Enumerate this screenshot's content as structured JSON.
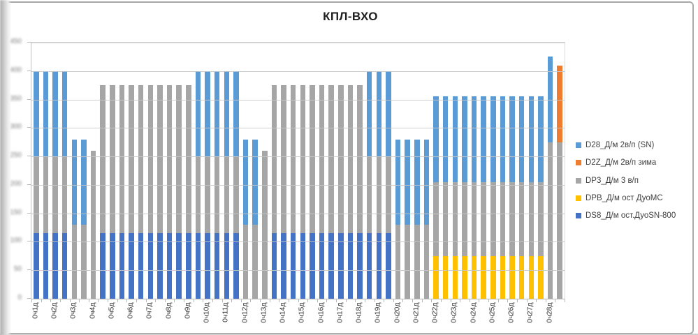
{
  "title": "КПЛ-ВХО",
  "accent_colors": {
    "d28_blue": "#5B9BD5",
    "d2z_orange": "#ED7D31",
    "dp3_gray": "#A6A6A6",
    "dpb_yellow": "#FFC000",
    "ds8_dark_blue": "#4472C4"
  },
  "legend": {
    "position": "right",
    "items": [
      {
        "key": "D28",
        "label": "D28_Д/м 2в/п (SN)",
        "color": "#5B9BD5"
      },
      {
        "key": "D2Z",
        "label": "D2Z_Д/м 2в/п зима",
        "color": "#ED7D31"
      },
      {
        "key": "DP3",
        "label": "DP3_Д/м 3 в/п",
        "color": "#A6A6A6"
      },
      {
        "key": "DPB",
        "label": "DPB_Д/м ост ДуоМС",
        "color": "#FFC000"
      },
      {
        "key": "DS8",
        "label": "DS8_Д/м ост.ДуоSN-800",
        "color": "#4472C4"
      }
    ]
  },
  "y_axis": {
    "labels_legible": false,
    "note": "tick labels are blurred/illegible in the screenshot; values estimated from gridline count",
    "ticks": [
      "0",
      "50",
      "100",
      "150",
      "200",
      "250",
      "300",
      "350",
      "400",
      "450"
    ]
  },
  "x_axis": {
    "labels": [
      "0ч1д",
      "0ч2д",
      "0ч3д",
      "0ч4д",
      "0ч5д",
      "0ч6д",
      "0ч7д",
      "0ч8д",
      "0ч9д",
      "0ч10д",
      "0ч11д",
      "0ч12д",
      "0ч13д",
      "0ч14д",
      "0ч15д",
      "0ч16д",
      "0ч17д",
      "0ч18д",
      "0ч19д",
      "0ч20д",
      "0ч21д",
      "0ч22д",
      "0ч23д",
      "0ч24д",
      "0ч25д",
      "0ч26д",
      "0ч27д",
      "0ч28д"
    ],
    "label_every_n_bars": 2
  },
  "chart_data": {
    "type": "bar",
    "stacked": true,
    "title": "КПЛ-ВХО",
    "n_bars": 56,
    "categories_labeled": [
      "0ч1д",
      "0ч2д",
      "0ч3д",
      "0ч4д",
      "0ч5д",
      "0ч6д",
      "0ч7д",
      "0ч8д",
      "0ч9д",
      "0ч10д",
      "0ч11д",
      "0ч12д",
      "0ч13д",
      "0ч14д",
      "0ч15д",
      "0ч16д",
      "0ч17д",
      "0ч18д",
      "0ч19д",
      "0ч20д",
      "0ч21д",
      "0ч22д",
      "0ч23д",
      "0ч24д",
      "0ч25д",
      "0ч26д",
      "0ч27д",
      "0ч28д"
    ],
    "label_interval": 2,
    "ylim": [
      0,
      450
    ],
    "gridline_step": 50,
    "grid": true,
    "legend_position": "right",
    "values_estimated": true,
    "stack_order": [
      "DS8",
      "DPB",
      "DP3",
      "D28",
      "D2Z"
    ],
    "series": [
      {
        "key": "D28",
        "name": "D28_Д/м 2в/п (SN)",
        "color": "#5B9BD5",
        "values": [
          150,
          150,
          150,
          150,
          150,
          150,
          0,
          0,
          0,
          0,
          0,
          0,
          0,
          0,
          0,
          0,
          0,
          150,
          150,
          150,
          150,
          150,
          150,
          150,
          0,
          0,
          0,
          0,
          0,
          0,
          0,
          0,
          0,
          0,
          0,
          150,
          150,
          150,
          150,
          150,
          150,
          150,
          150,
          150,
          150,
          150,
          150,
          150,
          150,
          150,
          150,
          150,
          150,
          150,
          150,
          0
        ]
      },
      {
        "key": "D2Z",
        "name": "D2Z_Д/м 2в/п зима",
        "color": "#ED7D31",
        "values": [
          0,
          0,
          0,
          0,
          0,
          0,
          0,
          0,
          0,
          0,
          0,
          0,
          0,
          0,
          0,
          0,
          0,
          0,
          0,
          0,
          0,
          0,
          0,
          0,
          0,
          0,
          0,
          0,
          0,
          0,
          0,
          0,
          0,
          0,
          0,
          0,
          0,
          0,
          0,
          0,
          0,
          0,
          0,
          0,
          0,
          0,
          0,
          0,
          0,
          0,
          0,
          0,
          0,
          0,
          0,
          135
        ]
      },
      {
        "key": "DP3",
        "name": "DP3_Д/м 3 в/п",
        "color": "#A6A6A6",
        "values": [
          135,
          135,
          135,
          135,
          130,
          130,
          260,
          260,
          260,
          260,
          260,
          260,
          260,
          260,
          260,
          260,
          260,
          135,
          135,
          135,
          135,
          135,
          130,
          130,
          260,
          260,
          260,
          260,
          260,
          260,
          260,
          260,
          260,
          260,
          260,
          135,
          135,
          135,
          130,
          130,
          130,
          130,
          130,
          130,
          130,
          130,
          130,
          130,
          130,
          130,
          130,
          130,
          130,
          130,
          275,
          275
        ]
      },
      {
        "key": "DPB",
        "name": "DPB_Д/м ост ДуоМС",
        "color": "#FFC000",
        "values": [
          0,
          0,
          0,
          0,
          0,
          0,
          0,
          0,
          0,
          0,
          0,
          0,
          0,
          0,
          0,
          0,
          0,
          0,
          0,
          0,
          0,
          0,
          0,
          0,
          0,
          0,
          0,
          0,
          0,
          0,
          0,
          0,
          0,
          0,
          0,
          0,
          0,
          0,
          0,
          0,
          0,
          0,
          75,
          75,
          75,
          75,
          75,
          75,
          75,
          75,
          75,
          75,
          75,
          75,
          0,
          0
        ]
      },
      {
        "key": "DS8",
        "name": "DS8_Д/м ост.ДуоSN-800",
        "color": "#4472C4",
        "values": [
          115,
          115,
          115,
          115,
          0,
          0,
          0,
          115,
          115,
          115,
          115,
          115,
          115,
          115,
          115,
          115,
          115,
          115,
          115,
          115,
          115,
          115,
          0,
          0,
          0,
          115,
          115,
          115,
          115,
          115,
          115,
          115,
          115,
          115,
          115,
          115,
          115,
          115,
          0,
          0,
          0,
          0,
          0,
          0,
          0,
          0,
          0,
          0,
          0,
          0,
          0,
          0,
          0,
          0,
          0,
          0
        ]
      }
    ]
  }
}
